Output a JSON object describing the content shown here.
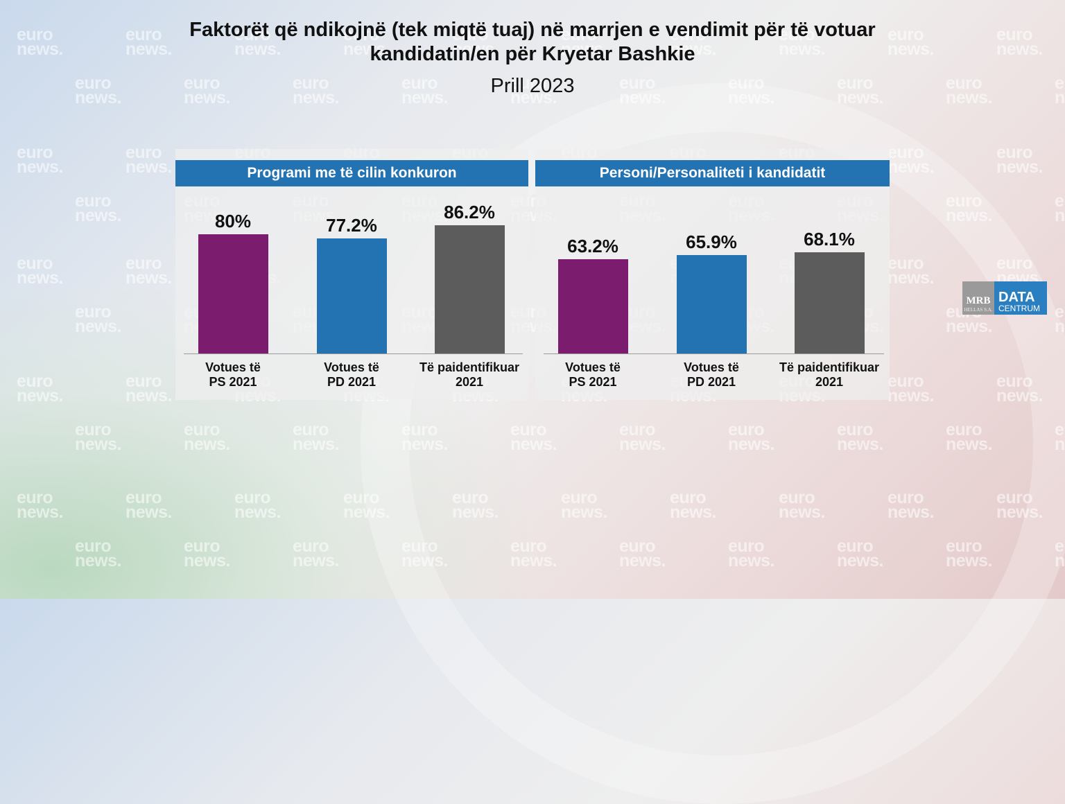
{
  "title_line1": "Faktorët që ndikojnë (tek miqtë tuaj) në marrjen e vendimit për të votuar",
  "title_line2": "kandidatin/en për Kryetar Bashkie",
  "subtitle": "Prill 2023",
  "watermark": "euro\nnews.",
  "logo": {
    "mrb": "MRB",
    "mrb_sub": "HELLAS S.A.",
    "data": "DATA",
    "centrum": "CENTRUM"
  },
  "colors": {
    "ps": "#7b1c6f",
    "pd": "#2373b3",
    "other": "#5c5c5c",
    "header": "#2373b3"
  },
  "chart_data": [
    {
      "type": "bar",
      "title": "Programi me të cilin konkuron",
      "categories": [
        "Votues të\nPS 2021",
        "Votues të\nPD 2021",
        "Të paidentifikuar\n2021"
      ],
      "values": [
        80,
        77.2,
        86.2
      ],
      "value_labels": [
        "80%",
        "77.2%",
        "86.2%"
      ],
      "ylim": [
        0,
        100
      ],
      "grid": false
    },
    {
      "type": "bar",
      "title": "Personi/Personaliteti i kandidatit",
      "categories": [
        "Votues të\nPS 2021",
        "Votues të\nPD 2021",
        "Të paidentifikuar\n2021"
      ],
      "values": [
        63.2,
        65.9,
        68.1
      ],
      "value_labels": [
        "63.2%",
        "65.9%",
        "68.1%"
      ],
      "ylim": [
        0,
        100
      ],
      "grid": false
    }
  ]
}
